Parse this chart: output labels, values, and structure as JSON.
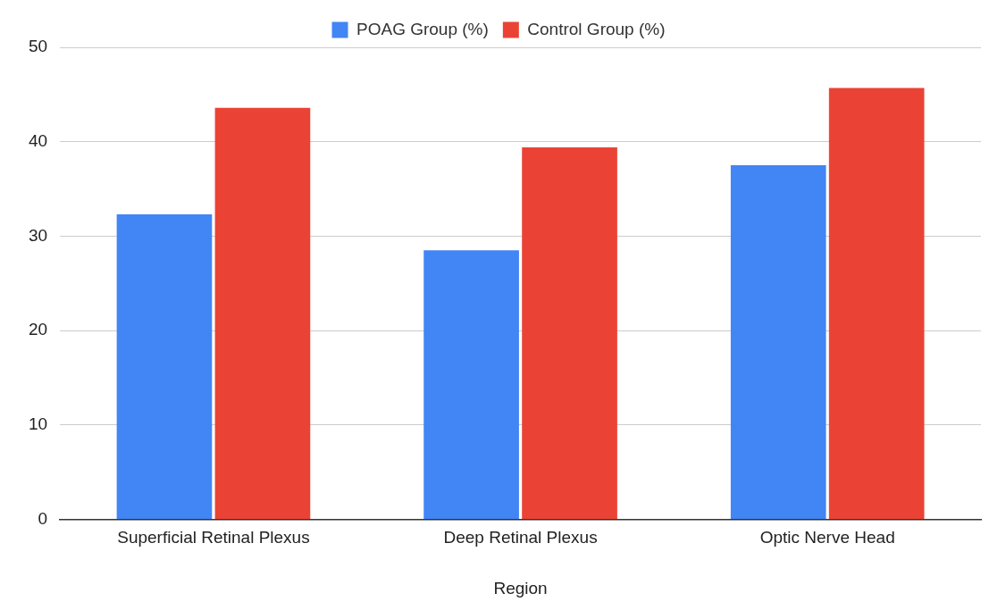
{
  "chart_data": {
    "type": "bar",
    "xlabel": "Region",
    "categories": [
      "Superficial Retinal Plexus",
      "Deep Retinal Plexus",
      "Optic Nerve Head"
    ],
    "series": [
      {
        "name": "POAG Group (%)",
        "color": "#4285f4",
        "values": [
          32.3,
          28.5,
          37.5
        ]
      },
      {
        "name": "Control Group (%)",
        "color": "#ea4335",
        "values": [
          43.6,
          39.4,
          45.7
        ]
      }
    ],
    "ylim": [
      0,
      50
    ],
    "yticks": [
      0,
      10,
      20,
      30,
      40,
      50
    ],
    "grid": "y",
    "legend": "top"
  }
}
